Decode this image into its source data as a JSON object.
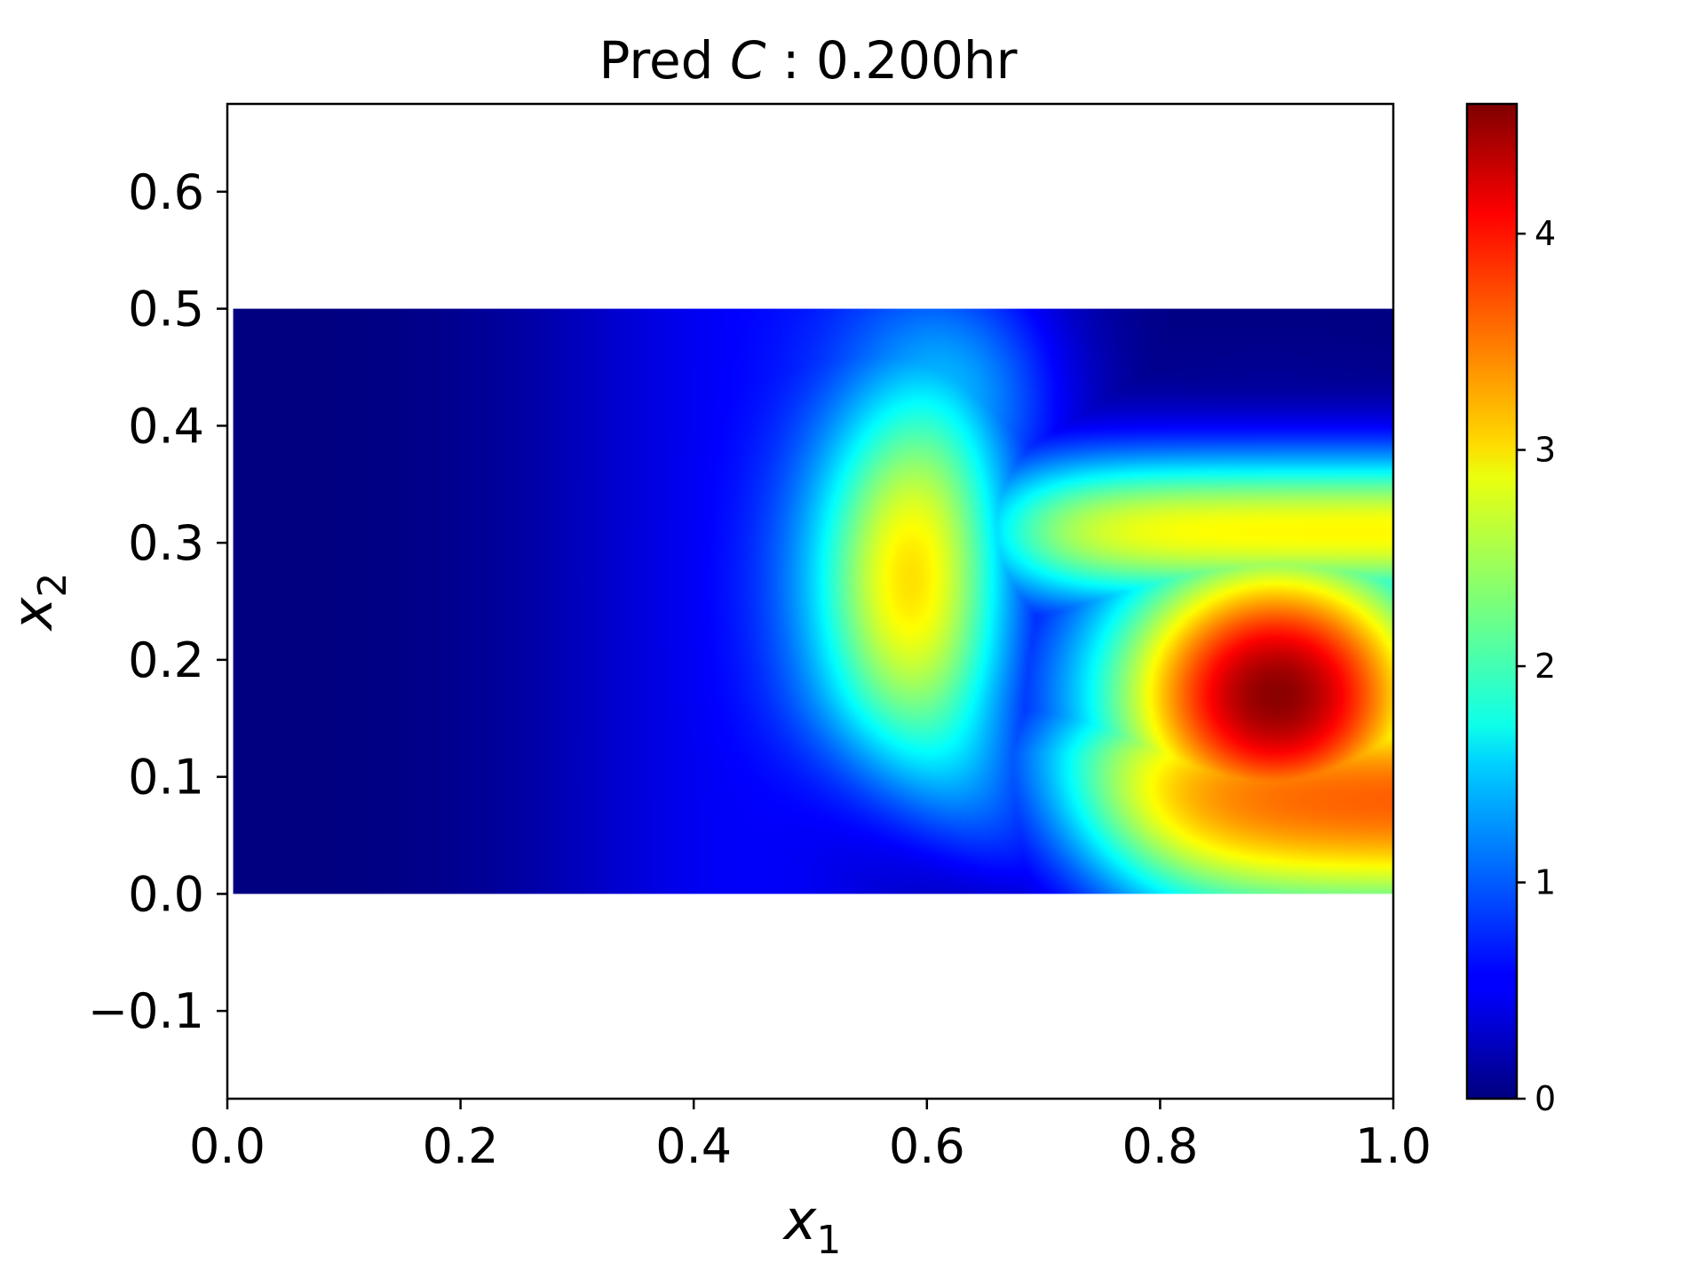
{
  "chart_data": {
    "type": "heatmap",
    "title": "Pred C : 0.200hr",
    "title_parts": {
      "prefix": "Pred",
      "variable": "C",
      "separator": ":",
      "time": "0.200hr"
    },
    "xlabel": {
      "symbol": "x",
      "subscript": "1"
    },
    "ylabel": {
      "symbol": "x",
      "subscript": "2"
    },
    "xlim": [
      0.0,
      1.0
    ],
    "ylim": [
      -0.175,
      0.675
    ],
    "x_ticks": [
      "0.0",
      "0.2",
      "0.4",
      "0.6",
      "0.8",
      "1.0"
    ],
    "x_tick_values": [
      0.0,
      0.2,
      0.4,
      0.6,
      0.8,
      1.0
    ],
    "y_ticks": [
      "−0.1",
      "0.0",
      "0.1",
      "0.2",
      "0.3",
      "0.4",
      "0.5",
      "0.6"
    ],
    "y_tick_values": [
      -0.1,
      0.0,
      0.1,
      0.2,
      0.3,
      0.4,
      0.5,
      0.6
    ],
    "domain": {
      "x": [
        0.005,
        1.0
      ],
      "y": [
        0.0,
        0.5
      ]
    },
    "colormap": "jet",
    "colorbar": {
      "range": [
        0,
        4.6
      ],
      "ticks": [
        "0",
        "1",
        "2",
        "3",
        "4"
      ],
      "tick_values": [
        0,
        1,
        2,
        3,
        4
      ]
    },
    "features": [
      {
        "peak_value": 4.55,
        "center": [
          0.9,
          0.17
        ]
      },
      {
        "ridge_value": 3.0,
        "path": "band curving from (0.7, 0.0) up through (0.6, 0.28) toward (1.0, 0.32)"
      }
    ],
    "grid": false
  }
}
